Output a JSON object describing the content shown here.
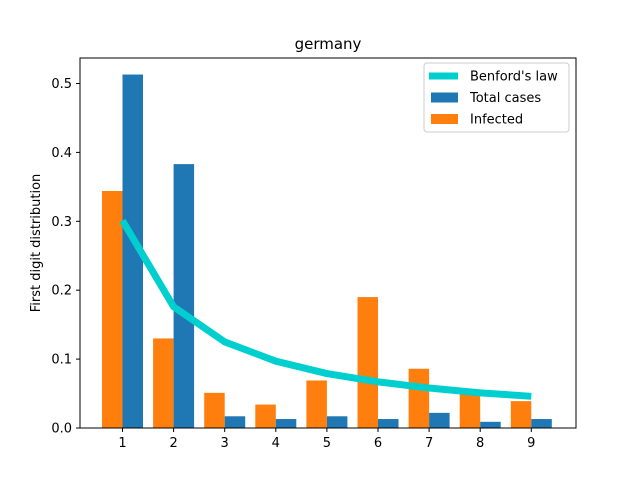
{
  "chart_data": {
    "type": "bar",
    "title": "germany",
    "xlabel": "",
    "ylabel": "First digit distribution",
    "categories": [
      "1",
      "2",
      "3",
      "4",
      "5",
      "6",
      "7",
      "8",
      "9"
    ],
    "ylim": [
      0,
      0.537
    ],
    "yticks": [
      "0.0",
      "0.1",
      "0.2",
      "0.3",
      "0.4",
      "0.5"
    ],
    "legend_position": "top-right",
    "series": [
      {
        "name": "Benford's law",
        "kind": "line",
        "color": "#00cfcf",
        "values": [
          0.301,
          0.176,
          0.125,
          0.097,
          0.079,
          0.067,
          0.058,
          0.051,
          0.046
        ]
      },
      {
        "name": "Total cases",
        "kind": "bar",
        "color": "#1f77b4",
        "values": [
          0.513,
          0.383,
          0.017,
          0.013,
          0.017,
          0.013,
          0.022,
          0.009,
          0.013
        ]
      },
      {
        "name": "Infected",
        "kind": "bar",
        "color": "#ff7f0e",
        "values": [
          0.344,
          0.13,
          0.051,
          0.034,
          0.069,
          0.19,
          0.086,
          0.051,
          0.039
        ]
      }
    ]
  }
}
